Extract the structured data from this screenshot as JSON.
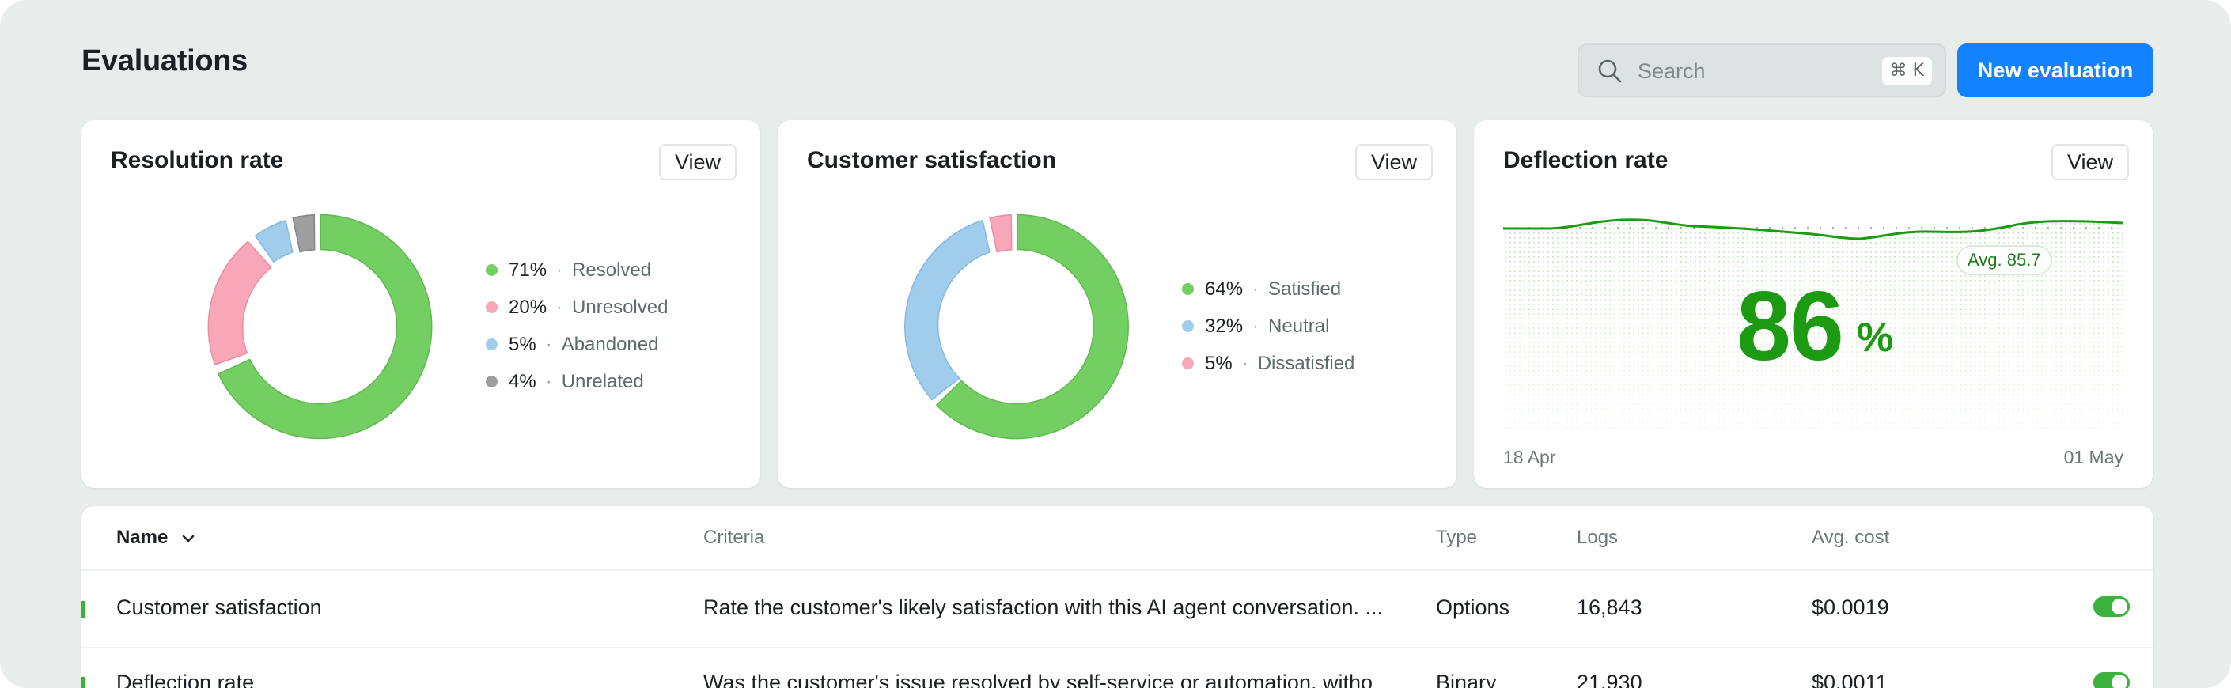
{
  "page": {
    "title": "Evaluations"
  },
  "search": {
    "placeholder": "Search",
    "shortcut": "⌘ K"
  },
  "actions": {
    "new_evaluation_label": "New evaluation"
  },
  "colors": {
    "accent": "#1382ff",
    "resolved": "#74cf62",
    "unresolved": "#f7a7b8",
    "abandoned": "#a0cdec",
    "unrelated": "#9e9e9e",
    "deflection_green": "#1b9a12"
  },
  "cards": {
    "resolution": {
      "title": "Resolution rate",
      "view_label": "View",
      "legend": [
        {
          "pct": "71%",
          "label": "Resolved"
        },
        {
          "pct": "20%",
          "label": "Unresolved"
        },
        {
          "pct": "5%",
          "label": "Abandoned"
        },
        {
          "pct": "4%",
          "label": "Unrelated"
        }
      ]
    },
    "satisfaction": {
      "title": "Customer satisfaction",
      "view_label": "View",
      "legend": [
        {
          "pct": "64%",
          "label": "Satisfied"
        },
        {
          "pct": "32%",
          "label": "Neutral"
        },
        {
          "pct": "5%",
          "label": "Dissatisfied"
        }
      ]
    },
    "deflection": {
      "title": "Deflection rate",
      "view_label": "View",
      "value": "86",
      "unit": "%",
      "avg_label": "Avg. 85.7",
      "start_date": "18 Apr",
      "end_date": "01 May"
    }
  },
  "table": {
    "columns": [
      "Name",
      "Criteria",
      "Type",
      "Logs",
      "Avg. cost"
    ],
    "rows": [
      {
        "name": "Customer satisfaction",
        "criteria": "Rate the customer's likely satisfaction with this AI agent conversation. ...",
        "type": "Options",
        "logs": "16,843",
        "avg_cost": "$0.0019",
        "enabled": true
      },
      {
        "name": "Deflection rate",
        "criteria": "Was the customer's issue resolved by self-service or automation, witho",
        "type": "Binary",
        "logs": "21,930",
        "avg_cost": "$0.0011",
        "enabled": true
      }
    ]
  }
}
